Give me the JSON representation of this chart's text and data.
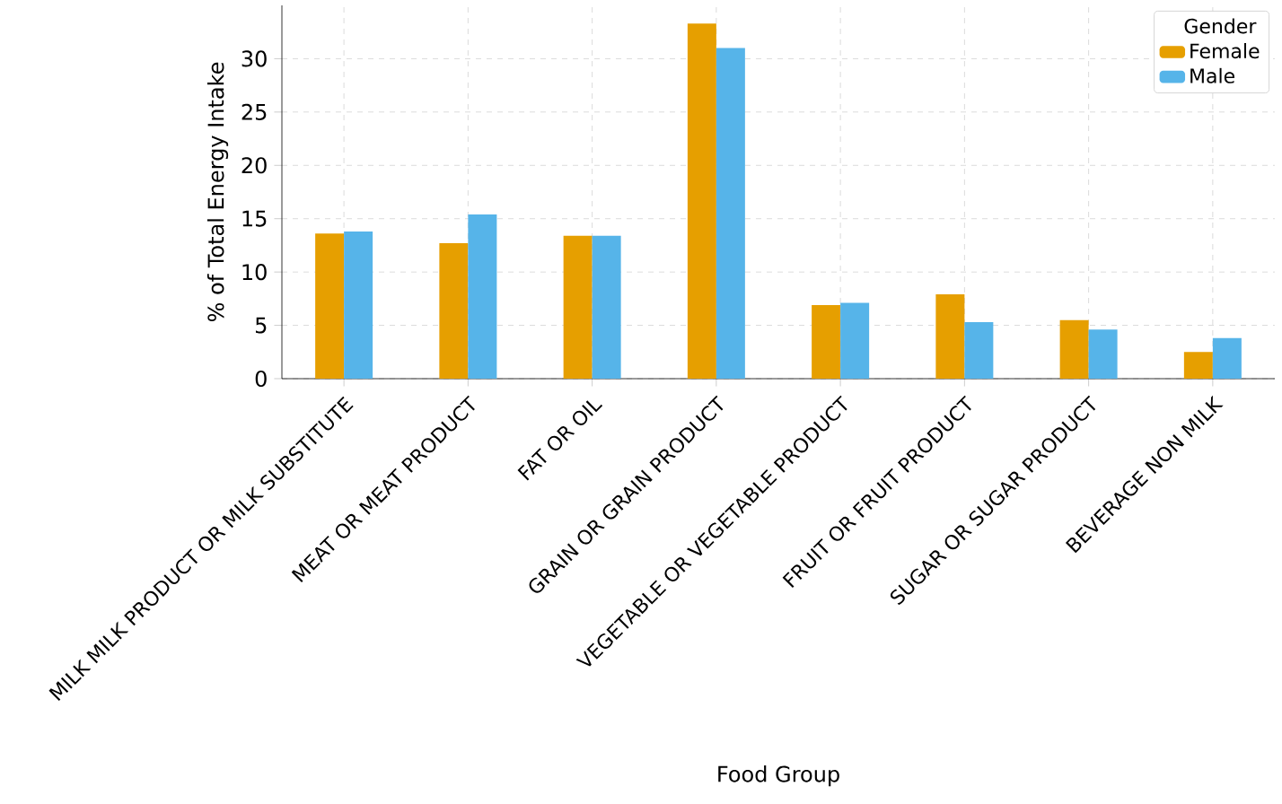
{
  "chart_data": {
    "type": "bar",
    "xlabel": "Food Group",
    "ylabel": "% of Total Energy Intake",
    "legend_title": "Gender",
    "categories": [
      "MILK MILK PRODUCT OR MILK SUBSTITUTE",
      "MEAT OR MEAT PRODUCT",
      "FAT OR OIL",
      "GRAIN OR GRAIN PRODUCT",
      "VEGETABLE OR VEGETABLE PRODUCT",
      "FRUIT OR FRUIT PRODUCT",
      "SUGAR OR SUGAR PRODUCT",
      "BEVERAGE NON MILK"
    ],
    "series": [
      {
        "name": "Female",
        "color": "#e69f00",
        "values": [
          13.6,
          12.7,
          13.4,
          33.3,
          6.9,
          7.9,
          5.5,
          2.5
        ]
      },
      {
        "name": "Male",
        "color": "#56b4e9",
        "values": [
          13.8,
          15.4,
          13.4,
          31.0,
          7.1,
          5.3,
          4.6,
          3.8
        ]
      }
    ],
    "ylim": [
      0,
      35
    ],
    "yticks": [
      0,
      5,
      10,
      15,
      20,
      25,
      30
    ],
    "grid": true,
    "legend": "top right"
  }
}
